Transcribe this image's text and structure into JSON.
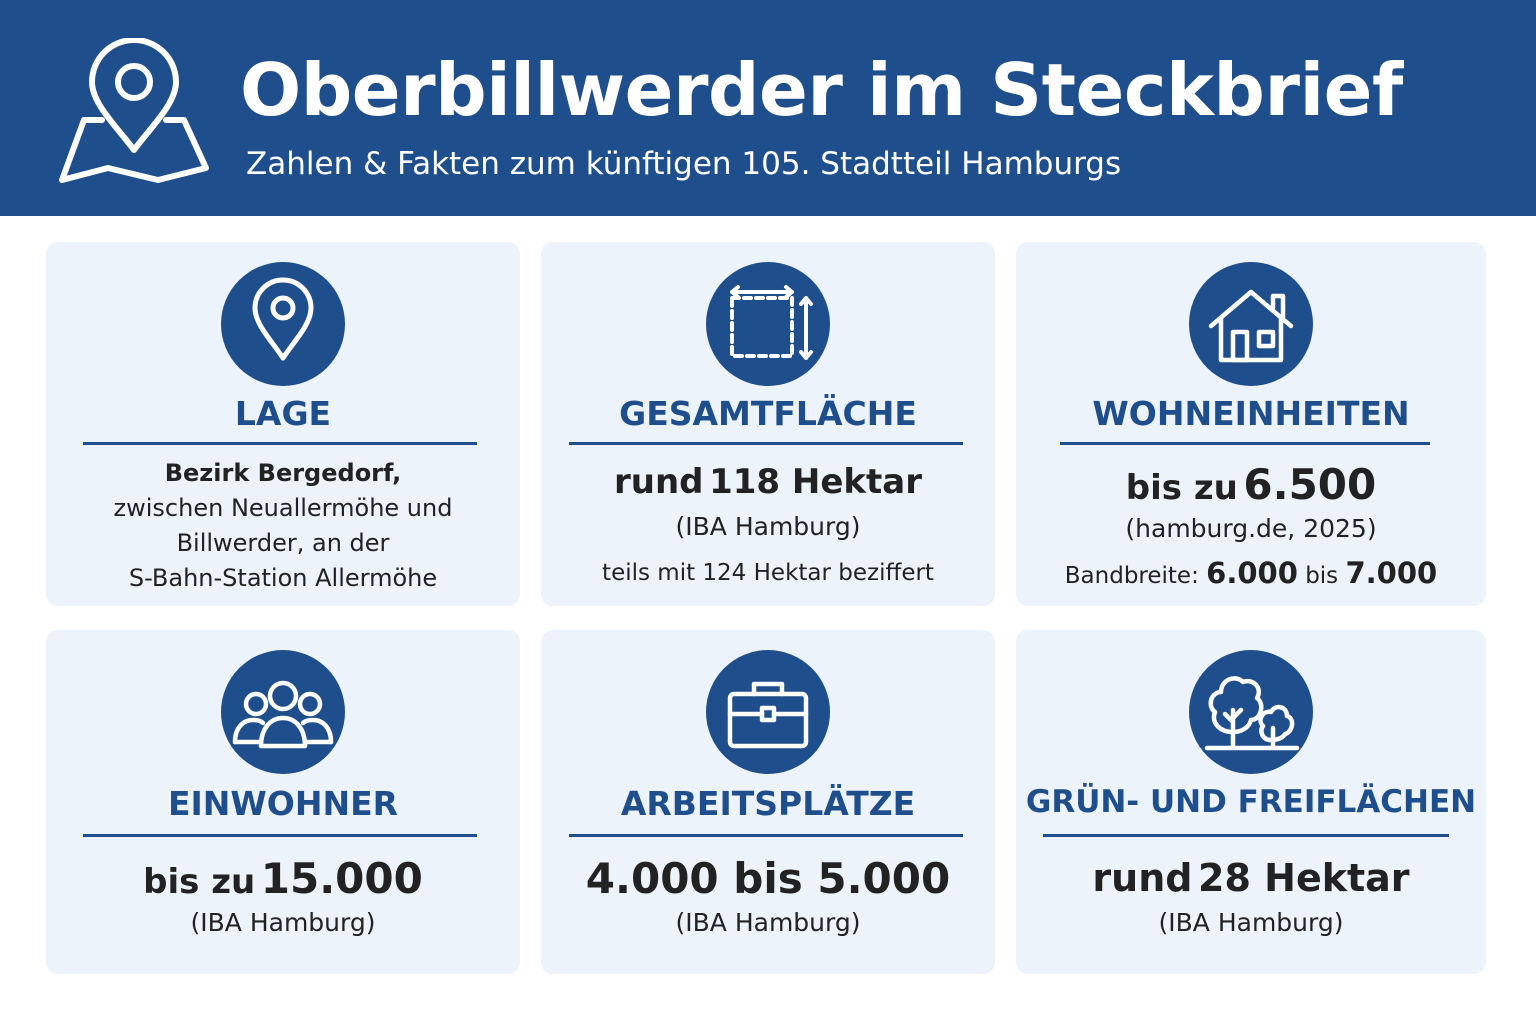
{
  "header": {
    "title": "Oberbillwerder im Steckbrief",
    "subtitle": "Zahlen & Fakten zum künftigen 105. Stadtteil Hamburgs",
    "icon": "map-pin-icon"
  },
  "colors": {
    "primary": "#1f4e8c",
    "card_background": "#edf3fb",
    "text": "#222222"
  },
  "cards": {
    "lage": {
      "icon": "location-pin-icon",
      "label": "LAGE",
      "line1": "Bezirk Bergedorf,",
      "line2": "zwischen Neuallermöhe und",
      "line3": "Billwerder, an der",
      "line4": "S-Bahn-Station Allermöhe"
    },
    "gesamtflaeche": {
      "icon": "area-dimensions-icon",
      "label": "GESAMTFLÄCHE",
      "value_prefix": "rund",
      "value": "118 Hektar",
      "source": "(IBA Hamburg)",
      "note": "teils mit 124 Hektar beziffert"
    },
    "wohneinheiten": {
      "icon": "house-icon",
      "label": "WOHNEINHEITEN",
      "value_prefix": "bis zu",
      "value": "6.500",
      "source": "(hamburg.de, 2025)",
      "note_label": "Bandbreite:",
      "note_from": "6.000",
      "note_mid": "bis",
      "note_to": "7.000"
    },
    "einwohner": {
      "icon": "people-icon",
      "label": "EINWOHNER",
      "value_prefix": "bis zu",
      "value": "15.000",
      "source": "(IBA Hamburg)"
    },
    "arbeitsplaetze": {
      "icon": "briefcase-icon",
      "label": "ARBEITSPLÄTZE",
      "value": "4.000 bis 5.000",
      "source": "(IBA Hamburg)"
    },
    "gruenflaechen": {
      "icon": "trees-icon",
      "label": "GRÜN- UND FREIFLÄCHEN",
      "value_prefix": "rund",
      "value": "28 Hektar",
      "source": "(IBA Hamburg)"
    }
  }
}
